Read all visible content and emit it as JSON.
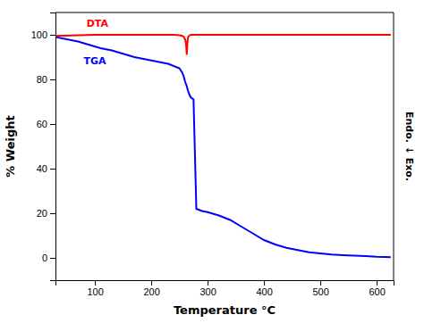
{
  "chart_data": {
    "type": "line",
    "xlabel": "Temperature °C",
    "ylabel": "% Weight",
    "y2label": "Endo. ↓ Exo.",
    "xlim": [
      30,
      630
    ],
    "ylim": [
      -10,
      110
    ],
    "xticks": [
      100,
      200,
      300,
      400,
      500,
      600
    ],
    "yticks": [
      0,
      20,
      40,
      60,
      80,
      100
    ],
    "grid": false,
    "series": [
      {
        "color": "#0000ff",
        "x": [
          30,
          50,
          70,
          90,
          110,
          130,
          150,
          170,
          190,
          210,
          230,
          250,
          255,
          258,
          260,
          263,
          265,
          268,
          270,
          275,
          280,
          285,
          290,
          300,
          320,
          340,
          360,
          380,
          400,
          420,
          440,
          460,
          480,
          500,
          520,
          540,
          560,
          580,
          600,
          625
        ],
        "values": [
          99,
          98,
          97,
          95.5,
          94,
          93,
          91.5,
          90,
          89,
          88,
          87,
          85,
          83,
          81,
          79,
          77,
          75,
          73,
          72,
          71,
          22,
          21.5,
          21,
          20.5,
          19,
          17,
          14,
          11,
          8,
          6,
          4.5,
          3.5,
          2.5,
          2,
          1.5,
          1.2,
          1.0,
          0.8,
          0.5,
          0.3
        ]
      },
      {
        "color": "#ff0000",
        "x": [
          30,
          100,
          150,
          200,
          220,
          240,
          250,
          255,
          258,
          260,
          261,
          262,
          263,
          264,
          265,
          266,
          267,
          268,
          270,
          275,
          280,
          300,
          350,
          400,
          500,
          625
        ],
        "values": [
          99.5,
          100,
          100,
          100,
          100,
          100,
          99.8,
          99.5,
          99.0,
          98.0,
          97.0,
          95.0,
          91.0,
          96.0,
          98.5,
          99.2,
          99.5,
          99.7,
          100,
          100,
          100,
          100,
          100,
          100,
          100,
          100
        ]
      }
    ],
    "annotations": [
      {
        "text": "DTA",
        "x": 85,
        "y": 103.5,
        "color": "#ff0000"
      },
      {
        "text": "TGA",
        "x": 80,
        "y": 87,
        "color": "#0000ff"
      }
    ]
  }
}
